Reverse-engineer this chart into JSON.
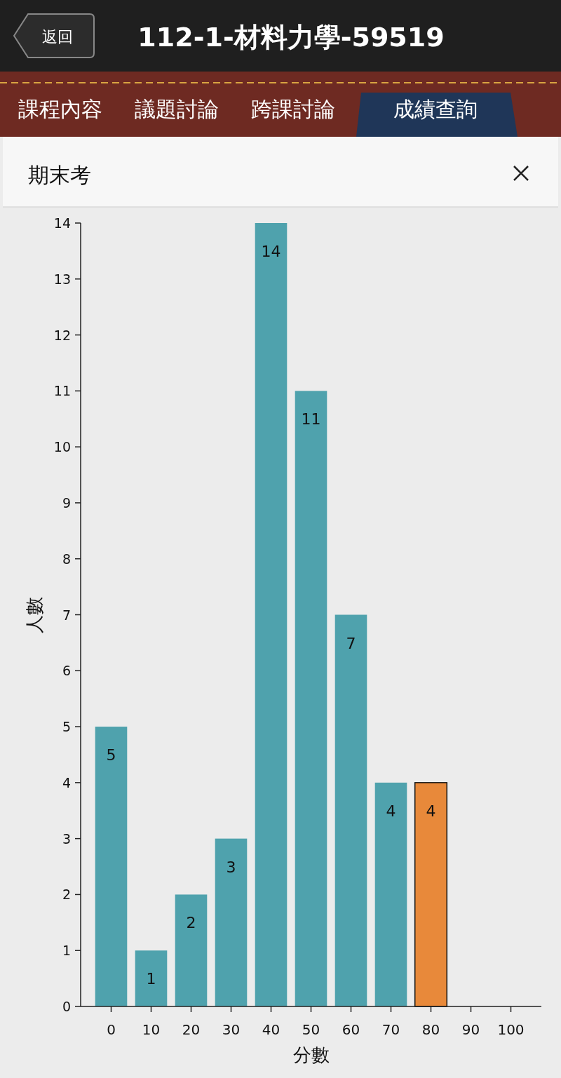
{
  "chart_data": {
    "type": "bar",
    "title": "112-1-材料力學-59519",
    "subtitle": "期末考",
    "annotations": [
      "返回",
      "課程內容",
      "議題討論",
      "跨課討論",
      "成績查詢"
    ],
    "categories": [
      "0",
      "10",
      "20",
      "30",
      "40",
      "50",
      "60",
      "70",
      "80",
      "90",
      "100"
    ],
    "values": [
      5,
      1,
      2,
      3,
      14,
      11,
      7,
      4,
      4,
      null,
      null
    ],
    "colors": [
      "#4fa2ad",
      "#4fa2ad",
      "#4fa2ad",
      "#4fa2ad",
      "#4fa2ad",
      "#4fa2ad",
      "#4fa2ad",
      "#4fa2ad",
      "#e8893a",
      null,
      null
    ],
    "xlabel": "分數",
    "ylabel": "人數",
    "ylim": [
      0,
      14
    ],
    "yticks": [
      0,
      1,
      2,
      3,
      4,
      5,
      6,
      7,
      8,
      9,
      10,
      11,
      12,
      13,
      14
    ],
    "data_labels": true,
    "grid": false
  }
}
